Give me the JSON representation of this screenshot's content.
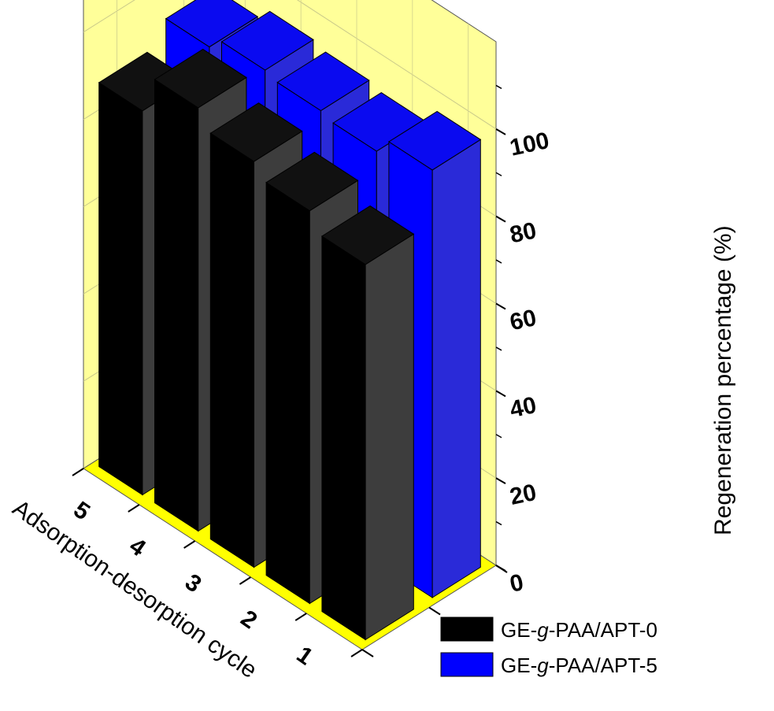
{
  "chart_data": {
    "type": "bar",
    "subtype": "3d-bar",
    "title": "",
    "xlabel": "Adsorption-desorption cycle",
    "ylabel": "Regeneration percentage (%)",
    "categories": [
      "1",
      "2",
      "3",
      "4",
      "5"
    ],
    "series": [
      {
        "name_parts": [
          "GE-",
          "g",
          "-PAA/APT-0"
        ],
        "color": "#000000",
        "side_color": "#3d3d3d",
        "top_color": "#111111",
        "values": [
          86,
          90,
          93,
          97,
          88
        ]
      },
      {
        "name_parts": [
          "GE-",
          "g",
          "-PAA/APT-5"
        ],
        "color": "#0000ff",
        "side_color": "#2a2ad8",
        "top_color": "#0a0af0",
        "values": [
          98,
          94,
          95,
          96,
          93
        ]
      }
    ],
    "yticks": [
      "0",
      "20",
      "40",
      "60",
      "80",
      "100"
    ],
    "ylim": [
      0,
      120
    ],
    "legend_position": "bottom-right",
    "grid": true,
    "wall_color": "#ffff99",
    "floor_color": "#ffff00"
  }
}
